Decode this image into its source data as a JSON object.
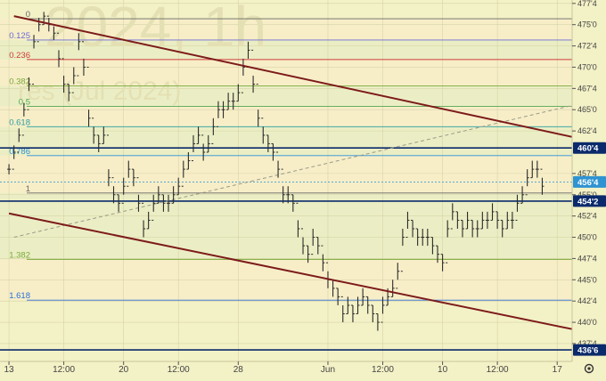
{
  "watermark": {
    "line1": "2024, 1h",
    "line2": "res (Jul 2024)"
  },
  "colors": {
    "background": "#f3f1c6",
    "bar": "#2b2b2b",
    "trendline": "#7d1b1b",
    "level_line": "#0b2a6b",
    "price_box": "#0b2a6b",
    "grid": "#d7d3a6",
    "dashed_line": "#9a9a8a"
  },
  "chart_data": {
    "type": "bar",
    "title": "",
    "ylim": [
      435.4,
      477.9
    ],
    "y_ticks": [
      {
        "label": "477'4",
        "value": 477.5
      },
      {
        "label": "475'0",
        "value": 475.0
      },
      {
        "label": "472'4",
        "value": 472.5
      },
      {
        "label": "470'0",
        "value": 470.0
      },
      {
        "label": "467'4",
        "value": 467.5
      },
      {
        "label": "465'0",
        "value": 465.0
      },
      {
        "label": "462'4",
        "value": 462.5
      },
      {
        "label": "457'4",
        "value": 457.5
      },
      {
        "label": "455'0",
        "value": 455.0
      },
      {
        "label": "452'4",
        "value": 452.5
      },
      {
        "label": "450'0",
        "value": 450.0
      },
      {
        "label": "447'4",
        "value": 447.5
      },
      {
        "label": "445'0",
        "value": 445.0
      },
      {
        "label": "442'4",
        "value": 442.5
      },
      {
        "label": "440'0",
        "value": 440.0
      },
      {
        "label": "437'4",
        "value": 437.5
      }
    ],
    "x_ticks": [
      {
        "label": "13",
        "bar": 0
      },
      {
        "label": "12:00",
        "bar": 11
      },
      {
        "label": "20",
        "bar": 23
      },
      {
        "label": "12:00",
        "bar": 34
      },
      {
        "label": "28",
        "bar": 46
      },
      {
        "label": "Jun",
        "bar": 64
      },
      {
        "label": "12:00",
        "bar": 75
      },
      {
        "label": "10",
        "bar": 87
      },
      {
        "label": "12:00",
        "bar": 98
      },
      {
        "label": "17",
        "bar": 110
      }
    ],
    "bar_range": [
      -1.8,
      113
    ],
    "fib_levels": [
      {
        "label": "0",
        "value": 475.7,
        "color": "#666666"
      },
      {
        "label": "0.125",
        "value": 473.2,
        "color": "#6b6bd6"
      },
      {
        "label": "0.236",
        "value": 470.9,
        "color": "#d03c3c"
      },
      {
        "label": "0.382",
        "value": 467.8,
        "color": "#7aa83a"
      },
      {
        "label": "0.5",
        "value": 465.4,
        "color": "#52a552"
      },
      {
        "label": "0.618",
        "value": 463.0,
        "color": "#2b9e9e"
      },
      {
        "label": "0.786",
        "value": 459.6,
        "color": "#2b8fd6"
      },
      {
        "label": "1",
        "value": 455.2,
        "color": "#666666"
      },
      {
        "label": "1.382",
        "value": 447.4,
        "color": "#7aa83a"
      },
      {
        "label": "1.618",
        "value": 442.6,
        "color": "#2b6fd6"
      }
    ],
    "price_levels": [
      {
        "label": "460'4",
        "value": 460.5
      },
      {
        "label": "454'2",
        "value": 454.25
      },
      {
        "label": "436'6",
        "value": 436.75
      }
    ],
    "current_price": {
      "label": "456'4",
      "value": 456.5
    },
    "trendlines": [
      {
        "x": [
          1,
          113
        ],
        "y": [
          476.0,
          461.8
        ]
      },
      {
        "x": [
          0,
          113
        ],
        "y": [
          452.8,
          439.2
        ]
      }
    ],
    "dashed_line": {
      "x": [
        1,
        113
      ],
      "y": [
        450.0,
        465.5
      ]
    },
    "closes": [
      458,
      460,
      462,
      465,
      468,
      473,
      475,
      476,
      475,
      474,
      471,
      468,
      467,
      469,
      473,
      470,
      464,
      462,
      461,
      462,
      457,
      455,
      454,
      456,
      458,
      457,
      454,
      451,
      452,
      454,
      455,
      454,
      454,
      455,
      456,
      458,
      459,
      461,
      462,
      460,
      461,
      463,
      465,
      465,
      466,
      466,
      467,
      470,
      472,
      468,
      464,
      462,
      461,
      460,
      458,
      455,
      455,
      454,
      451,
      449,
      448,
      450,
      449,
      447,
      445,
      444,
      443,
      441,
      442,
      441,
      442,
      443,
      442,
      441,
      440,
      442,
      443,
      444,
      446,
      450,
      452,
      451,
      450,
      450,
      450,
      449,
      448,
      447,
      451,
      453,
      452,
      451,
      452,
      451,
      451,
      452,
      452,
      453,
      452,
      451,
      452,
      452,
      454,
      455,
      457,
      458,
      458,
      456
    ],
    "highs": [
      458.6,
      460.8,
      462.8,
      465.8,
      468.8,
      473.8,
      475.8,
      476.5,
      475.8,
      474.8,
      472.0,
      469.0,
      468.0,
      470.0,
      474.0,
      471.0,
      465.0,
      463.0,
      462.0,
      463.0,
      458.0,
      456.0,
      455.0,
      457.0,
      459.0,
      458.0,
      455.0,
      452.0,
      453.0,
      455.0,
      456.0,
      455.0,
      455.0,
      456.0,
      457.0,
      459.0,
      460.0,
      462.0,
      463.0,
      461.0,
      462.0,
      464.0,
      466.0,
      466.0,
      467.0,
      467.0,
      468.0,
      471.0,
      473.0,
      469.0,
      465.0,
      463.0,
      462.0,
      461.0,
      459.0,
      456.0,
      456.0,
      455.0,
      452.0,
      450.0,
      449.0,
      451.0,
      450.0,
      448.0,
      446.0,
      445.0,
      444.0,
      442.0,
      443.0,
      442.0,
      443.0,
      444.0,
      443.0,
      442.0,
      441.0,
      443.0,
      444.0,
      445.0,
      447.0,
      451.0,
      453.0,
      452.0,
      451.0,
      451.0,
      451.0,
      450.0,
      449.0,
      448.0,
      452.0,
      454.0,
      453.0,
      452.0,
      453.0,
      452.0,
      452.0,
      453.0,
      453.0,
      454.0,
      453.0,
      452.0,
      453.0,
      453.0,
      455.0,
      456.0,
      458.0,
      459.0,
      459.0,
      457.0
    ],
    "lows": [
      457.4,
      459.2,
      461.2,
      464.2,
      467.2,
      472.2,
      474.2,
      475.0,
      474.2,
      473.2,
      470.0,
      467.0,
      466.0,
      468.0,
      472.0,
      469.0,
      463.0,
      461.0,
      460.0,
      461.0,
      456.0,
      454.0,
      453.0,
      455.0,
      457.0,
      456.0,
      453.0,
      450.0,
      451.0,
      453.0,
      454.0,
      453.0,
      453.0,
      454.0,
      455.0,
      457.0,
      458.0,
      460.0,
      461.0,
      459.0,
      460.0,
      462.0,
      464.0,
      464.0,
      465.0,
      465.0,
      466.0,
      469.0,
      471.0,
      467.0,
      463.0,
      461.0,
      460.0,
      459.0,
      457.0,
      454.0,
      454.0,
      453.0,
      450.0,
      448.0,
      447.0,
      449.0,
      448.0,
      446.0,
      444.0,
      443.0,
      442.0,
      440.0,
      441.0,
      440.0,
      441.0,
      442.0,
      441.0,
      440.0,
      439.0,
      441.0,
      442.0,
      443.0,
      445.0,
      449.0,
      451.0,
      450.0,
      449.0,
      449.0,
      449.0,
      448.0,
      447.0,
      446.0,
      450.0,
      452.0,
      451.0,
      450.0,
      451.0,
      450.0,
      450.0,
      451.0,
      451.0,
      452.0,
      451.0,
      450.0,
      451.0,
      451.0,
      453.0,
      454.0,
      456.0,
      457.0,
      457.0,
      455.0
    ]
  }
}
